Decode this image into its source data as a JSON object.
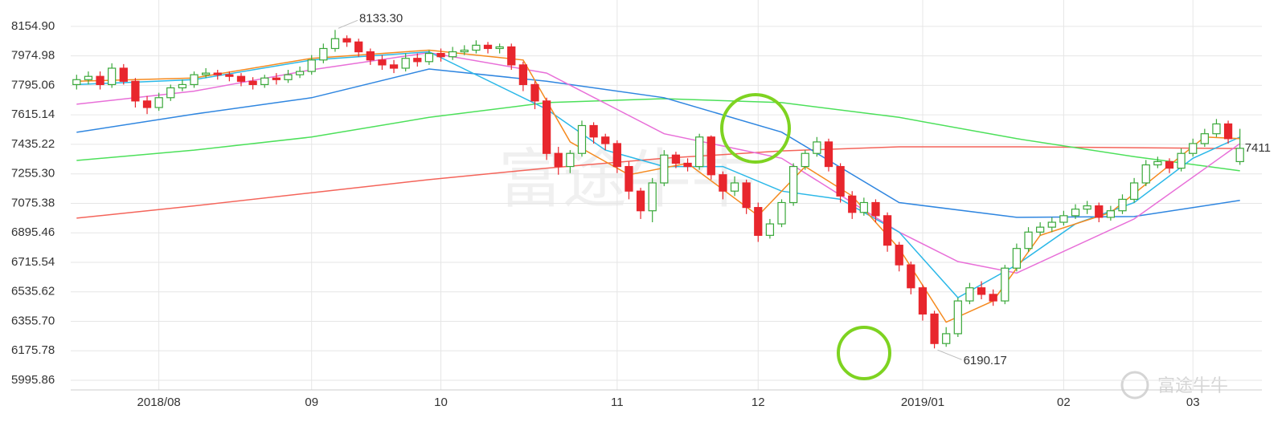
{
  "chart_data": {
    "type": "candlestick",
    "ylim": [
      5937,
      8316
    ],
    "yticks": [
      {
        "value": 5995.86,
        "label": "5995.86"
      },
      6175.78,
      {
        "value": 6355.7,
        "label": "6355.70"
      },
      6535.62,
      6715.54,
      6895.46,
      7075.38,
      {
        "value": 7255.3,
        "label": "7255.30"
      },
      7435.22,
      7615.14,
      7795.06,
      7974.98,
      {
        "value": 8154.9,
        "label": "8154.90"
      }
    ],
    "xlim": [
      0,
      100
    ],
    "xticks": [
      {
        "value": 7,
        "label": "2018/08"
      },
      {
        "value": 20,
        "label": "09"
      },
      {
        "value": 31,
        "label": "10"
      },
      {
        "value": 46,
        "label": "11"
      },
      {
        "value": 58,
        "label": "12"
      },
      {
        "value": 72,
        "label": "2019/01"
      },
      {
        "value": 84,
        "label": "02"
      },
      {
        "value": 95,
        "label": "03"
      }
    ],
    "grid": true,
    "up_color": "#3aa83a",
    "down_color": "#e8262d",
    "candles": {
      "open": [
        7800,
        7830,
        7850,
        7800,
        7900,
        7820,
        7700,
        7660,
        7720,
        7780,
        7800,
        7860,
        7870,
        7860,
        7850,
        7820,
        7800,
        7840,
        7830,
        7860,
        7880,
        7950,
        8020,
        8080,
        8060,
        8000,
        7950,
        7920,
        7900,
        7960,
        7940,
        7990,
        7970,
        8000,
        8010,
        8040,
        8020,
        8030,
        7920,
        7800,
        7700,
        7380,
        7300,
        7380,
        7550,
        7480,
        7440,
        7300,
        7150,
        7030,
        7200,
        7370,
        7320,
        7300,
        7480,
        7250,
        7150,
        7200,
        7050,
        6880,
        6950,
        7080,
        7300,
        7380,
        7450,
        7300,
        7120,
        7020,
        7080,
        7000,
        6820,
        6700,
        6560,
        6400,
        6220,
        6280,
        6480,
        6560,
        6520,
        6480,
        6680,
        6800,
        6900,
        6930,
        6960,
        7000,
        7040,
        7060,
        6990,
        7030,
        7100,
        7200,
        7310,
        7330,
        7290,
        7380,
        7440,
        7500,
        7560,
        7330
      ],
      "high": [
        7860,
        7880,
        7880,
        7930,
        7925,
        7840,
        7730,
        7750,
        7800,
        7830,
        7880,
        7900,
        7890,
        7880,
        7870,
        7845,
        7860,
        7870,
        7890,
        7910,
        7980,
        8050,
        8133.3,
        8100,
        8080,
        8020,
        7980,
        7950,
        7990,
        7990,
        8010,
        8020,
        8030,
        8040,
        8070,
        8060,
        8050,
        8050,
        7940,
        7820,
        7720,
        7420,
        7400,
        7580,
        7570,
        7500,
        7460,
        7330,
        7170,
        7230,
        7400,
        7390,
        7350,
        7500,
        7490,
        7270,
        7240,
        7220,
        7080,
        6980,
        7100,
        7320,
        7400,
        7480,
        7470,
        7320,
        7150,
        7110,
        7100,
        7020,
        6840,
        6720,
        6580,
        6420,
        6320,
        6500,
        6590,
        6600,
        6550,
        6700,
        6830,
        6930,
        6960,
        6990,
        7030,
        7070,
        7090,
        7080,
        7060,
        7130,
        7230,
        7340,
        7360,
        7350,
        7410,
        7470,
        7530,
        7590,
        7580,
        7530
      ],
      "low": [
        7770,
        7800,
        7770,
        7780,
        7800,
        7660,
        7620,
        7640,
        7700,
        7760,
        7780,
        7840,
        7830,
        7820,
        7790,
        7770,
        7780,
        7800,
        7810,
        7840,
        7860,
        7930,
        8000,
        8030,
        7970,
        7920,
        7890,
        7870,
        7880,
        7910,
        7920,
        7940,
        7950,
        7980,
        7990,
        7990,
        7990,
        7890,
        7760,
        7650,
        7340,
        7250,
        7260,
        7360,
        7440,
        7400,
        7260,
        7100,
        6980,
        6960,
        7180,
        7290,
        7270,
        7280,
        7220,
        7100,
        7120,
        7010,
        6840,
        6860,
        6930,
        7060,
        7280,
        7360,
        7270,
        7080,
        6980,
        7000,
        6960,
        6780,
        6660,
        6520,
        6360,
        6190.17,
        6200,
        6260,
        6460,
        6490,
        6450,
        6460,
        6660,
        6780,
        6880,
        6900,
        6940,
        6980,
        7010,
        6960,
        6970,
        7010,
        7080,
        7180,
        7290,
        7260,
        7270,
        7360,
        7420,
        7480,
        7440,
        7310
      ],
      "close": [
        7830,
        7850,
        7800,
        7900,
        7820,
        7700,
        7660,
        7720,
        7780,
        7800,
        7860,
        7870,
        7860,
        7850,
        7820,
        7800,
        7840,
        7830,
        7860,
        7880,
        7950,
        8020,
        8080,
        8060,
        8000,
        7950,
        7920,
        7900,
        7960,
        7940,
        7990,
        7970,
        8000,
        8010,
        8040,
        8020,
        8030,
        7920,
        7800,
        7700,
        7380,
        7300,
        7380,
        7550,
        7480,
        7440,
        7300,
        7150,
        7030,
        7200,
        7370,
        7320,
        7300,
        7480,
        7250,
        7150,
        7200,
        7050,
        6880,
        6950,
        7080,
        7300,
        7380,
        7450,
        7300,
        7120,
        7020,
        7080,
        7000,
        6820,
        6700,
        6560,
        6400,
        6220,
        6280,
        6480,
        6560,
        6520,
        6480,
        6680,
        6800,
        6900,
        6930,
        6960,
        7000,
        7040,
        7060,
        6990,
        7030,
        7100,
        7200,
        7310,
        7330,
        7290,
        7380,
        7440,
        7500,
        7560,
        7470,
        7411
      ]
    },
    "high_label": "8133.30",
    "low_label": "6190.17",
    "last_label": "7411",
    "series": [
      {
        "color": "#f4645a",
        "x": [
          0,
          10,
          20,
          30,
          40,
          50,
          60,
          70,
          80,
          90,
          99
        ],
        "values": [
          6985,
          7060,
          7140,
          7220,
          7290,
          7350,
          7395,
          7420,
          7420,
          7415,
          7410
        ]
      },
      {
        "color": "#4ce05a",
        "x": [
          0,
          10,
          20,
          30,
          40,
          50,
          60,
          70,
          80,
          90,
          99
        ],
        "values": [
          7337,
          7400,
          7480,
          7600,
          7690,
          7714,
          7690,
          7600,
          7470,
          7360,
          7274
        ]
      },
      {
        "color": "#2f86e0",
        "x": [
          0,
          10,
          20,
          30,
          40,
          50,
          60,
          70,
          80,
          90,
          99
        ],
        "values": [
          7509,
          7620,
          7720,
          7895,
          7820,
          7720,
          7510,
          7080,
          6990,
          6995,
          7093
        ]
      },
      {
        "color": "#e86fd8",
        "x": [
          0,
          10,
          20,
          30,
          40,
          50,
          60,
          70,
          75,
          80,
          90,
          99
        ],
        "values": [
          7680,
          7760,
          7890,
          7995,
          7870,
          7500,
          7350,
          6900,
          6720,
          6650,
          6980,
          7440
        ]
      },
      {
        "color": "#2bb8e8",
        "x": [
          0,
          10,
          20,
          30,
          40,
          45,
          50,
          55,
          60,
          65,
          70,
          75,
          80,
          85,
          90,
          95,
          99
        ],
        "values": [
          7800,
          7830,
          7950,
          8000,
          7650,
          7400,
          7300,
          7300,
          7150,
          7100,
          6900,
          6500,
          6700,
          6950,
          7080,
          7350,
          7480
        ]
      },
      {
        "color": "#f58a1f",
        "x": [
          0,
          10,
          20,
          30,
          38,
          42,
          47,
          52,
          58,
          62,
          66,
          70,
          74,
          78,
          82,
          88,
          92,
          96,
          99
        ],
        "values": [
          7820,
          7840,
          7960,
          8010,
          7950,
          7450,
          7250,
          7320,
          7000,
          7300,
          7120,
          6800,
          6350,
          6480,
          6880,
          7020,
          7250,
          7480,
          7470
        ]
      }
    ],
    "watermark": "富途牛牛"
  }
}
